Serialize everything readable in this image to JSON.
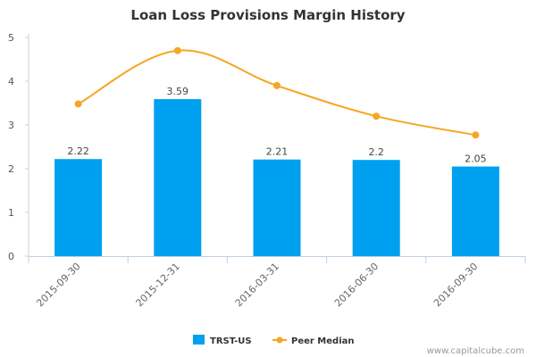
{
  "chart_data": {
    "type": "bar",
    "title": "Loan Loss Provisions Margin History",
    "categories": [
      "2015-09-30",
      "2015-12-31",
      "2016-03-31",
      "2016-06-30",
      "2016-09-30"
    ],
    "series": [
      {
        "name": "TRST-US",
        "type": "bar",
        "color": "#00a0f0",
        "values": [
          2.22,
          3.59,
          2.21,
          2.2,
          2.05
        ],
        "data_labels": [
          "2.22",
          "3.59",
          "2.21",
          "2.2",
          "2.05"
        ]
      },
      {
        "name": "Peer Median",
        "type": "line",
        "color": "#f5a623",
        "values": [
          3.48,
          4.7,
          3.9,
          3.2,
          2.77
        ]
      }
    ],
    "ylim": [
      0,
      5
    ],
    "yticks": [
      "0",
      "1",
      "2",
      "3",
      "4",
      "5"
    ],
    "xlabel": "",
    "ylabel": "",
    "grid": false,
    "legend_position": "bottom"
  },
  "credit": "www.capitalcube.com"
}
